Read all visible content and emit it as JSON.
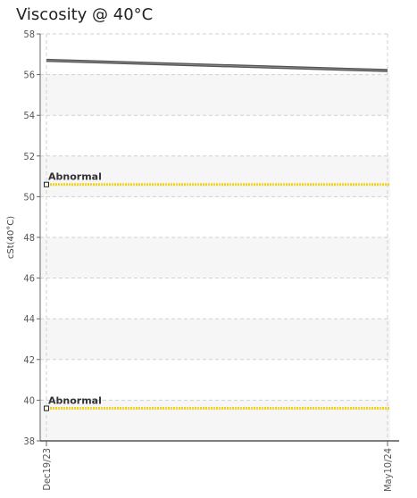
{
  "chart_data": {
    "type": "line",
    "title": "Viscosity @ 40°C",
    "ylabel": "cSt(40°C)",
    "xlabel": "",
    "ylim": [
      38,
      58
    ],
    "yticks": [
      38,
      40,
      42,
      44,
      46,
      48,
      50,
      52,
      54,
      56,
      58
    ],
    "x": [
      "Dec19/23",
      "May10/24"
    ],
    "series": [
      {
        "values": [
          56.7,
          56.2
        ],
        "color": "#555555"
      }
    ],
    "thresholds": [
      {
        "label": "Abnormal",
        "value": 50.6,
        "color": "#f2d21b"
      },
      {
        "label": "Abnormal",
        "value": 39.6,
        "color": "#f2d21b"
      }
    ],
    "grid": true,
    "legend": "none"
  }
}
